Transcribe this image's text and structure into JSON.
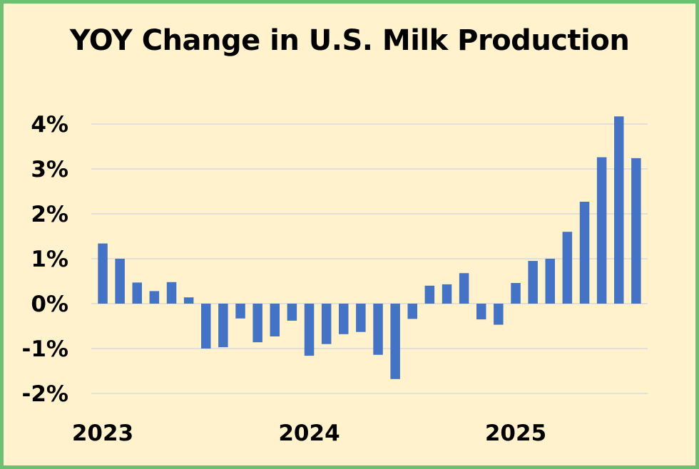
{
  "chart_data": {
    "type": "bar",
    "title": "YOY Change in U.S. Milk Production",
    "xlabel": "",
    "ylabel": "",
    "ylim": [
      -2,
      4
    ],
    "y_ticks": [
      "4%",
      "3%",
      "2%",
      "1%",
      "0%",
      "-1%",
      "-2%"
    ],
    "x_year_labels": [
      {
        "label": "2023",
        "index": 0
      },
      {
        "label": "2024",
        "index": 12
      },
      {
        "label": "2025",
        "index": 24
      }
    ],
    "grid": true,
    "legend": "none",
    "bar_color": "#4472c4",
    "values": [
      1.34,
      1.0,
      0.47,
      0.28,
      0.48,
      0.14,
      -1.0,
      -0.97,
      -0.33,
      -0.86,
      -0.73,
      -0.38,
      -1.16,
      -0.9,
      -0.68,
      -0.63,
      -1.14,
      -1.68,
      -0.34,
      0.4,
      0.43,
      0.68,
      -0.35,
      -0.47,
      0.46,
      0.95,
      1.0,
      1.6,
      2.27,
      3.26,
      4.17,
      3.24
    ]
  }
}
